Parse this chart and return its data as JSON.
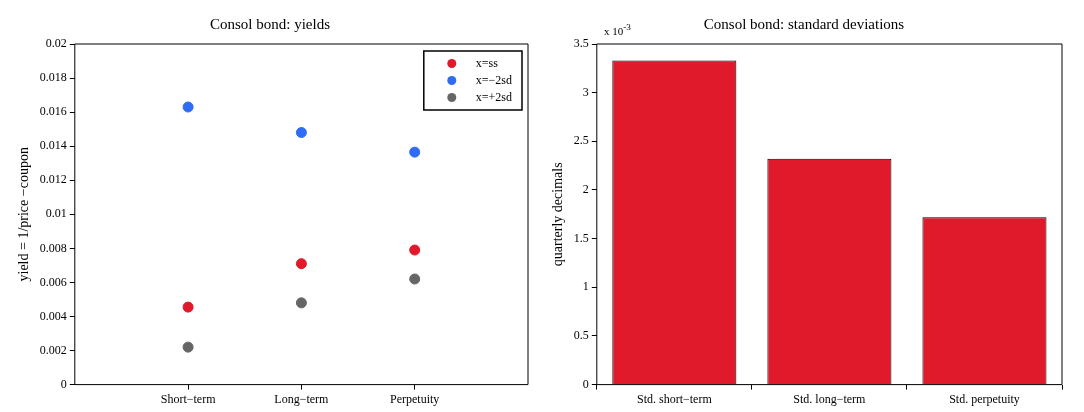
{
  "chart_data": [
    {
      "type": "scatter",
      "title": "Consol bond: yields",
      "ylabel": "yield = 1/price −coupon",
      "categories": [
        "Short−term",
        "Long−term",
        "Perpetuity"
      ],
      "series": [
        {
          "name": "x=ss",
          "color": "#e0192b",
          "values": [
            0.00455,
            0.0071,
            0.0079
          ]
        },
        {
          "name": "x=−2sd",
          "color": "#2f6cf5",
          "values": [
            0.0163,
            0.0148,
            0.01365
          ]
        },
        {
          "name": "x=+2sd",
          "color": "#666666",
          "values": [
            0.0022,
            0.0048,
            0.0062
          ]
        }
      ],
      "ylim": [
        0,
        0.02
      ],
      "yticks": [
        0,
        0.002,
        0.004,
        0.006,
        0.008,
        0.01,
        0.012,
        0.014,
        0.016,
        0.018,
        0.02
      ],
      "grid": false,
      "legend": "top right",
      "marker": "circle"
    },
    {
      "type": "bar",
      "title": "Consol bond: standard deviations",
      "ylabel": "quarterly decimals",
      "categories": [
        "Std. short−term",
        "Std. long−term",
        "Std. perpetuity"
      ],
      "values": [
        3.33,
        2.32,
        1.72
      ],
      "color": "#e0192b",
      "ylim": [
        0,
        3.5
      ],
      "yticks": [
        0,
        0.5,
        1,
        1.5,
        2,
        2.5,
        3,
        3.5
      ],
      "grid": false,
      "annotations": [
        "x 10$^{-3}$"
      ]
    }
  ]
}
